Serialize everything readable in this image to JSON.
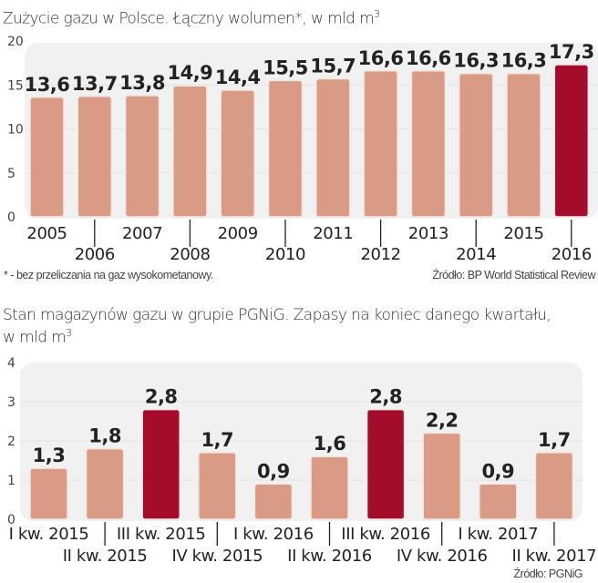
{
  "chart_data": [
    {
      "type": "bar",
      "title": "Zużycie gazu w Polsce. Łączny wolumen*, w mld m",
      "title_superscript": "3",
      "xlabel": "",
      "ylabel": "",
      "ylim": [
        0,
        20
      ],
      "yticks": [
        "0",
        "5",
        "10",
        "15",
        "20"
      ],
      "grid": true,
      "categories": [
        "2005",
        "2006",
        "2007",
        "2008",
        "2009",
        "2010",
        "2011",
        "2012",
        "2013",
        "2014",
        "2015",
        "2016"
      ],
      "values": [
        13.6,
        13.7,
        13.8,
        14.9,
        14.4,
        15.5,
        15.7,
        16.6,
        16.6,
        16.3,
        16.3,
        17.3
      ],
      "data_labels": [
        "13,6",
        "13,7",
        "13,8",
        "14,9",
        "14,4",
        "15,5",
        "15,7",
        "16,6",
        "16,6",
        "16,3",
        "16,3",
        "17,3"
      ],
      "highlight_index": [
        11
      ],
      "footnote": "* - bez przeliczania na gaz wysokometanowy.",
      "source": "Źródło: BP World Statistical Review"
    },
    {
      "type": "bar",
      "title": "Stan magazynów gazu w grupie PGNiG. Zapasy na koniec danego kwartału,",
      "title_line2": "w mld m",
      "title_superscript": "3",
      "xlabel": "",
      "ylabel": "",
      "ylim": [
        0,
        4
      ],
      "yticks": [
        "0",
        "1",
        "2",
        "3",
        "4"
      ],
      "grid": true,
      "categories": [
        "I kw. 2015",
        "II kw. 2015",
        "III kw. 2015",
        "IV kw. 2015",
        "I kw. 2016",
        "II kw. 2016",
        "III kw. 2016",
        "IV kw. 2016",
        "I kw. 2017",
        "II kw. 2017"
      ],
      "values": [
        1.3,
        1.8,
        2.8,
        1.7,
        0.9,
        1.6,
        2.8,
        2.2,
        0.9,
        1.7
      ],
      "data_labels": [
        "1,3",
        "1,8",
        "2,8",
        "1,7",
        "0,9",
        "1,6",
        "2,8",
        "2,2",
        "0,9",
        "1,7"
      ],
      "highlight_index": [
        2,
        6
      ],
      "source": "Źródło: PGNiG"
    }
  ],
  "colors": {
    "bar": "#d99b86",
    "bar_highlight": "#a30c2a",
    "bar_border": "#f3e6e1",
    "panel": "#f1f1f2",
    "grid": "#e2e2e4",
    "text": "#222222"
  }
}
